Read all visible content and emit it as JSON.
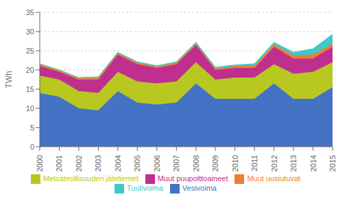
{
  "chart_data": {
    "type": "area",
    "stacked": true,
    "ylabel": "TWh",
    "x": [
      2000,
      2001,
      2002,
      2003,
      2004,
      2005,
      2006,
      2007,
      2008,
      2009,
      2010,
      2011,
      2012,
      2013,
      2014,
      2015
    ],
    "xlim": [
      2000,
      2015
    ],
    "xticks": [
      2000,
      2001,
      2002,
      2003,
      2004,
      2005,
      2006,
      2007,
      2008,
      2009,
      2010,
      2011,
      2012,
      2013,
      2014,
      2015
    ],
    "ylim": [
      0,
      35
    ],
    "yticks": [
      0,
      5,
      10,
      15,
      20,
      25,
      30,
      35
    ],
    "grid": true,
    "legend": "bottom",
    "series": [
      {
        "name": "Vesivoima",
        "color": "#4472c4",
        "values": [
          14.0,
          13.0,
          10.0,
          9.5,
          14.5,
          11.5,
          11.0,
          11.5,
          16.5,
          12.5,
          12.5,
          12.5,
          16.5,
          12.5,
          12.5,
          15.5
        ]
      },
      {
        "name": "Metsäteollisuuden jäteliemet",
        "color": "#b8c820",
        "values": [
          4.5,
          4.5,
          4.5,
          4.5,
          5.0,
          5.5,
          5.5,
          5.5,
          5.5,
          5.0,
          5.5,
          5.5,
          5.0,
          6.5,
          7.0,
          6.5
        ]
      },
      {
        "name": "Muut puupolttoaineet",
        "color": "#bf2f8f",
        "values": [
          2.5,
          2.0,
          3.0,
          3.5,
          4.5,
          4.5,
          4.0,
          4.5,
          4.5,
          2.5,
          2.5,
          2.5,
          4.5,
          4.0,
          3.5,
          4.0
        ]
      },
      {
        "name": "Muut uusiutuvat",
        "color": "#ed7d31",
        "values": [
          0.5,
          0.4,
          0.4,
          0.5,
          0.4,
          0.4,
          0.4,
          0.4,
          0.4,
          0.4,
          0.5,
          0.6,
          0.7,
          0.8,
          1.0,
          0.8
        ]
      },
      {
        "name": "Tuulivoima",
        "color": "#40c8c8",
        "values": [
          0.1,
          0.1,
          0.1,
          0.2,
          0.2,
          0.2,
          0.2,
          0.2,
          0.3,
          0.3,
          0.3,
          0.5,
          0.5,
          0.8,
          1.5,
          2.5
        ]
      }
    ]
  }
}
